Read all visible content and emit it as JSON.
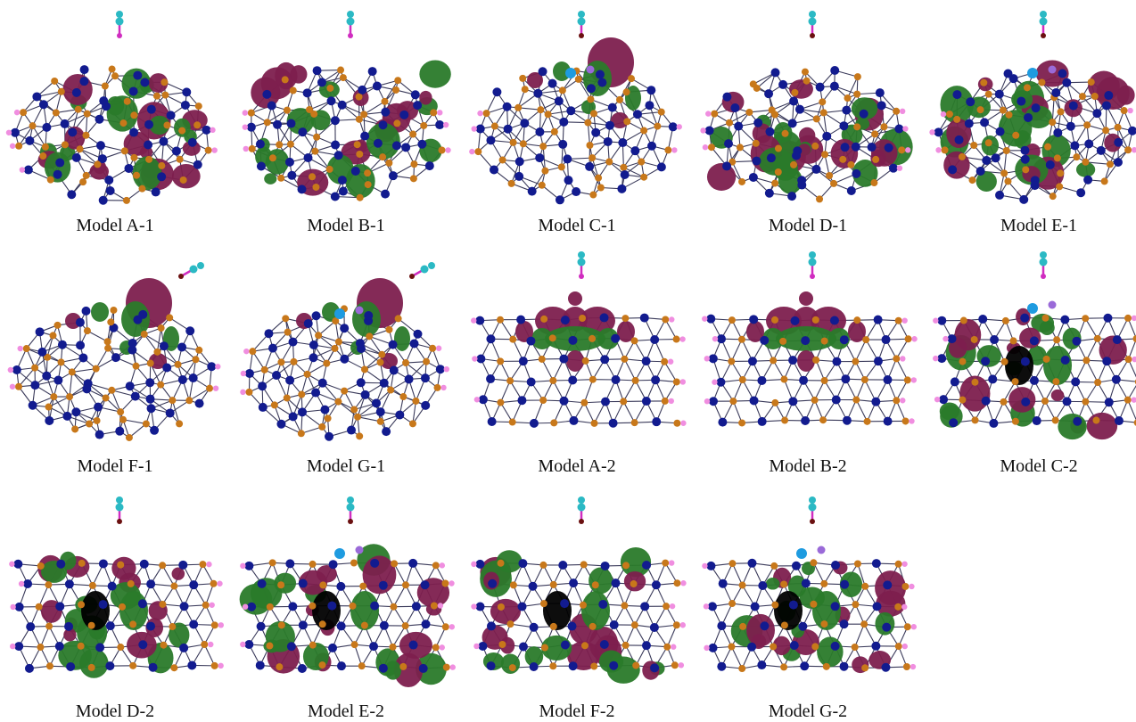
{
  "palette": {
    "lobe_purple": "#7d1f4e",
    "lobe_green": "#2a7a2a",
    "atom_blue": "#121b8f",
    "atom_orange": "#c8781a",
    "atom_pink": "#f08ee0",
    "atom_cyan": "#2bb9c4",
    "atom_magenta": "#d02dc0",
    "atom_darkred": "#6b1010",
    "atom_violet": "#9a6ad8",
    "bond": "#3a3a5a"
  },
  "models": [
    {
      "label": "Model A-1",
      "shape": "cage",
      "adsorbate": "magenta",
      "lobes": "spread",
      "highlight": false,
      "tilt": false
    },
    {
      "label": "Model B-1",
      "shape": "cage",
      "adsorbate": "magenta",
      "lobes": "spread",
      "highlight": false,
      "tilt": false
    },
    {
      "label": "Model C-1",
      "shape": "cage",
      "adsorbate": "cyan",
      "lobes": "top",
      "highlight": true,
      "tilt": false
    },
    {
      "label": "Model D-1",
      "shape": "cage",
      "adsorbate": "cyan",
      "lobes": "spread",
      "highlight": false,
      "tilt": false
    },
    {
      "label": "Model E-1",
      "shape": "cage",
      "adsorbate": "cyan",
      "lobes": "spread",
      "highlight": true,
      "tilt": false
    },
    {
      "label": "Model F-1",
      "shape": "cage",
      "adsorbate": "cyan",
      "lobes": "top",
      "highlight": false,
      "tilt": true
    },
    {
      "label": "Model G-1",
      "shape": "cage",
      "adsorbate": "cyan",
      "lobes": "top",
      "highlight": true,
      "tilt": true
    },
    {
      "label": "Model A-2",
      "shape": "tube",
      "adsorbate": "magenta",
      "lobes": "center",
      "highlight": false,
      "tilt": false
    },
    {
      "label": "Model B-2",
      "shape": "tube",
      "adsorbate": "magenta",
      "lobes": "center",
      "highlight": false,
      "tilt": false
    },
    {
      "label": "Model C-2",
      "shape": "tube",
      "adsorbate": "magenta",
      "lobes": "spread",
      "highlight": true,
      "tilt": false
    },
    {
      "label": "Model D-2",
      "shape": "tube",
      "adsorbate": "cyan",
      "lobes": "spread",
      "highlight": false,
      "tilt": false
    },
    {
      "label": "Model E-2",
      "shape": "tube",
      "adsorbate": "cyan",
      "lobes": "spread",
      "highlight": true,
      "tilt": false
    },
    {
      "label": "Model F-2",
      "shape": "tube",
      "adsorbate": "cyan",
      "lobes": "spread",
      "highlight": false,
      "tilt": false
    },
    {
      "label": "Model G-2",
      "shape": "tube",
      "adsorbate": "cyan",
      "lobes": "spread",
      "highlight": true,
      "tilt": false
    }
  ]
}
